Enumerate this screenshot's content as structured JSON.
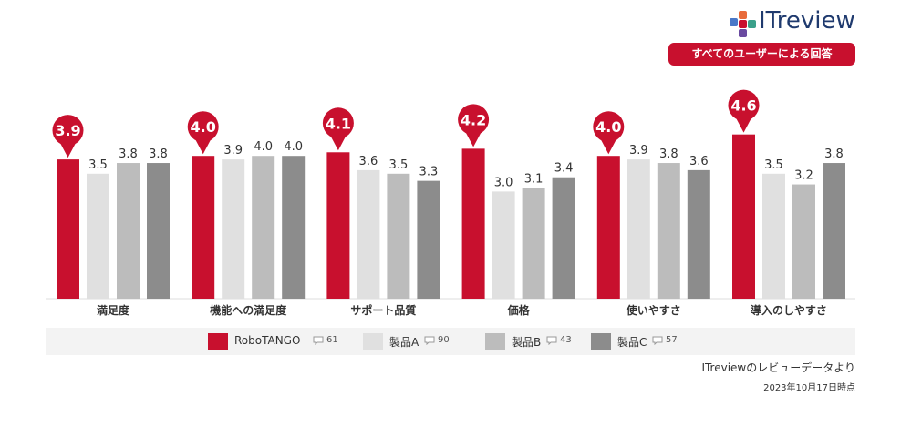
{
  "brand": {
    "logo_text": "ITreview",
    "badge": "すべてのユーザーによる回答"
  },
  "source": "ITreviewのレビューデータより",
  "date": "2023年10月17日時点",
  "colors": {
    "robotango": "#c8102e",
    "a": "#e0e0e0",
    "b": "#bcbcbc",
    "c": "#8c8c8c"
  },
  "chart_data": {
    "type": "bar",
    "categories": [
      "満足度",
      "機能への満足度",
      "サポート品質",
      "価格",
      "使いやすさ",
      "導入のしやすさ"
    ],
    "series": [
      {
        "name": "RoboTANGO",
        "count": "61",
        "values": [
          3.9,
          4.0,
          4.1,
          4.2,
          4.0,
          4.6
        ]
      },
      {
        "name": "製品A",
        "count": "90",
        "values": [
          3.5,
          3.9,
          3.6,
          3.0,
          3.9,
          3.5
        ]
      },
      {
        "name": "製品B",
        "count": "43",
        "values": [
          3.8,
          4.0,
          3.5,
          3.1,
          3.8,
          3.2
        ]
      },
      {
        "name": "製品C",
        "count": "57",
        "values": [
          3.8,
          4.0,
          3.3,
          3.4,
          3.6,
          3.8
        ]
      }
    ],
    "ylim": [
      0,
      5
    ],
    "grid": false,
    "legend": "bottom"
  }
}
